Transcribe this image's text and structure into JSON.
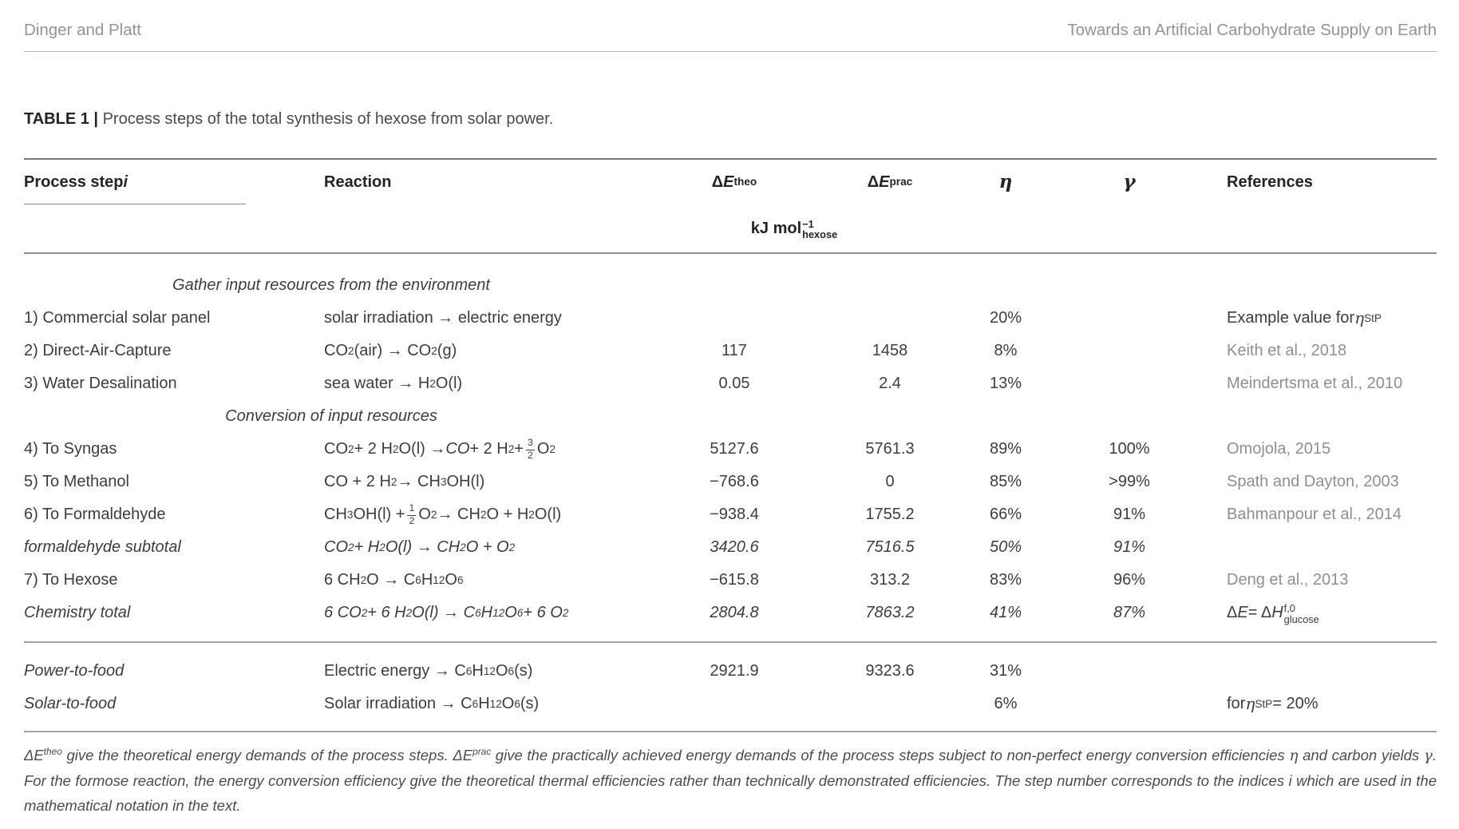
{
  "page_header": {
    "left": "Dinger and Platt",
    "right": "Towards an Artificial Carbohydrate Supply on Earth"
  },
  "caption": {
    "label": "TABLE 1 |",
    "text": "Process steps of the total synthesis of hexose from solar power."
  },
  "colors": {
    "body_text": "#3d3d3d",
    "header_text": "#242424",
    "citation_gray": "#8f8f8f",
    "rule_gray": "#9a9a9a",
    "background": "#ffffff"
  },
  "table": {
    "columns": {
      "step": [
        {
          "t": "Process step "
        },
        {
          "t": "i",
          "s": "it"
        }
      ],
      "reaction": [
        {
          "t": "Reaction"
        }
      ],
      "e_theo": [
        {
          "t": "Δ"
        },
        {
          "t": "E",
          "s": "it"
        },
        {
          "t": "theo",
          "s": "sup"
        }
      ],
      "e_prac": [
        {
          "t": "Δ"
        },
        {
          "t": "E",
          "s": "it"
        },
        {
          "t": "prac",
          "s": "sup"
        }
      ],
      "eta": [
        {
          "t": "η",
          "s": "itserif"
        }
      ],
      "gamma": [
        {
          "t": "γ",
          "s": "itserif"
        }
      ],
      "references": [
        {
          "t": "References"
        }
      ],
      "unit": [
        {
          "t": "kJ mol"
        },
        {
          "s": "stack",
          "sup": "−1",
          "sub": "hexose"
        }
      ]
    },
    "rows": [
      {
        "type": "section",
        "first": true,
        "label": "Gather input resources from the environment"
      },
      {
        "type": "row",
        "step": "1) Commercial solar panel",
        "reaction": [
          {
            "t": "solar irradiation → electric energy"
          }
        ],
        "e_theo": "",
        "e_prac": "",
        "eta": "20%",
        "gamma": "",
        "ref": [
          {
            "t": "Example value for "
          },
          {
            "t": "η",
            "s": "itserif"
          },
          {
            "t": "StP",
            "s": "sub"
          }
        ],
        "ref_cite": false
      },
      {
        "type": "row",
        "step": "2) Direct-Air-Capture",
        "reaction": [
          {
            "t": "CO"
          },
          {
            "t": "2",
            "s": "sub"
          },
          {
            "t": "(air) → CO"
          },
          {
            "t": "2",
            "s": "sub"
          },
          {
            "t": "(g)"
          }
        ],
        "e_theo": "117",
        "e_prac": "1458",
        "eta": "8%",
        "gamma": "",
        "ref": [
          {
            "t": "Keith et al., 2018"
          }
        ],
        "ref_cite": true
      },
      {
        "type": "row",
        "step": "3) Water Desalination",
        "reaction": [
          {
            "t": "sea water → H"
          },
          {
            "t": "2",
            "s": "sub"
          },
          {
            "t": "O(l)"
          }
        ],
        "e_theo": "0.05",
        "e_prac": "2.4",
        "eta": "13%",
        "gamma": "",
        "ref": [
          {
            "t": "Meindertsma et al., 2010"
          }
        ],
        "ref_cite": true
      },
      {
        "type": "section",
        "label": "Conversion of input resources"
      },
      {
        "type": "row",
        "step": "4) To Syngas",
        "reaction": [
          {
            "t": "CO"
          },
          {
            "t": "2",
            "s": "sub"
          },
          {
            "t": " + 2 H"
          },
          {
            "t": "2",
            "s": "sub"
          },
          {
            "t": "O(l) → "
          },
          {
            "t": "CO",
            "s": "it"
          },
          {
            "t": " + 2 H"
          },
          {
            "t": "2",
            "s": "sub"
          },
          {
            "t": " + "
          },
          {
            "s": "frac",
            "sup": "3",
            "sub": "2"
          },
          {
            "t": " O"
          },
          {
            "t": "2",
            "s": "sub"
          }
        ],
        "e_theo": "5127.6",
        "e_prac": "5761.3",
        "eta": "89%",
        "gamma": "100%",
        "ref": [
          {
            "t": "Omojola, 2015"
          }
        ],
        "ref_cite": true
      },
      {
        "type": "row",
        "step": "5) To Methanol",
        "reaction": [
          {
            "t": "CO + 2 H"
          },
          {
            "t": "2",
            "s": "sub"
          },
          {
            "t": " → CH"
          },
          {
            "t": "3",
            "s": "sub"
          },
          {
            "t": "OH(l)"
          }
        ],
        "e_theo": "−768.6",
        "e_prac": "0",
        "eta": "85%",
        "gamma": ">99%",
        "ref": [
          {
            "t": "Spath and Dayton, 2003"
          }
        ],
        "ref_cite": true
      },
      {
        "type": "row",
        "step": "6) To Formaldehyde",
        "reaction": [
          {
            "t": "CH"
          },
          {
            "t": "3",
            "s": "sub"
          },
          {
            "t": "OH(l) + "
          },
          {
            "s": "frac",
            "sup": "1",
            "sub": "2"
          },
          {
            "t": " O"
          },
          {
            "t": "2",
            "s": "sub"
          },
          {
            "t": " → CH"
          },
          {
            "t": "2",
            "s": "sub"
          },
          {
            "t": "O + H"
          },
          {
            "t": "2",
            "s": "sub"
          },
          {
            "t": "O(l)"
          }
        ],
        "e_theo": "−938.4",
        "e_prac": "1755.2",
        "eta": "66%",
        "gamma": "91%",
        "ref": [
          {
            "t": "Bahmanpour et al., 2014"
          }
        ],
        "ref_cite": true
      },
      {
        "type": "row",
        "mods": "it-all",
        "step": "formaldehyde subtotal",
        "reaction": [
          {
            "t": "CO"
          },
          {
            "t": "2",
            "s": "sub"
          },
          {
            "t": " + H"
          },
          {
            "t": "2",
            "s": "sub"
          },
          {
            "t": "O(l) → CH"
          },
          {
            "t": "2",
            "s": "sub"
          },
          {
            "t": "O + O"
          },
          {
            "t": "2",
            "s": "sub"
          }
        ],
        "e_theo": "3420.6",
        "e_prac": "7516.5",
        "eta": "50%",
        "gamma": "91%",
        "ref": []
      },
      {
        "type": "row",
        "step": "7) To Hexose",
        "reaction": [
          {
            "t": "6 CH"
          },
          {
            "t": "2",
            "s": "sub"
          },
          {
            "t": "O → C"
          },
          {
            "t": "6",
            "s": "sub"
          },
          {
            "t": "H"
          },
          {
            "t": "12",
            "s": "sub"
          },
          {
            "t": "O"
          },
          {
            "t": "6",
            "s": "sub"
          }
        ],
        "e_theo": "−615.8",
        "e_prac": "313.2",
        "eta": "83%",
        "gamma": "96%",
        "ref": [
          {
            "t": "Deng et al., 2013"
          }
        ],
        "ref_cite": true
      },
      {
        "type": "row",
        "mods": "it-all",
        "cls": "padb15",
        "step": "Chemistry total",
        "reaction": [
          {
            "t": "6 CO"
          },
          {
            "t": "2",
            "s": "sub"
          },
          {
            "t": " + 6 H"
          },
          {
            "t": "2",
            "s": "sub"
          },
          {
            "t": "O(l) → C"
          },
          {
            "t": "6",
            "s": "sub"
          },
          {
            "t": "H"
          },
          {
            "t": "12",
            "s": "sub"
          },
          {
            "t": "O"
          },
          {
            "t": "6",
            "s": "sub"
          },
          {
            "t": " + 6 O"
          },
          {
            "t": "2",
            "s": "sub"
          }
        ],
        "e_theo": "2804.8",
        "e_prac": "7863.2",
        "eta": "41%",
        "gamma": "87%",
        "ref": [
          {
            "t": "Δ"
          },
          {
            "t": "E",
            "s": "it"
          },
          {
            "t": " = Δ"
          },
          {
            "t": "H",
            "s": "it"
          },
          {
            "s": "stack",
            "sup": "f,0",
            "sub": "glucose"
          }
        ],
        "ref_cite": false
      },
      {
        "type": "rule"
      },
      {
        "type": "row",
        "mods": "it-label",
        "cls": "padt15",
        "step": "Power-to-food",
        "reaction": [
          {
            "t": "Electric energy → C"
          },
          {
            "t": "6",
            "s": "sub"
          },
          {
            "t": "H"
          },
          {
            "t": "12",
            "s": "sub"
          },
          {
            "t": "O"
          },
          {
            "t": "6",
            "s": "sub"
          },
          {
            "t": "(s)"
          }
        ],
        "e_theo": "2921.9",
        "e_prac": "9323.6",
        "eta": "31%",
        "gamma": "",
        "ref": []
      },
      {
        "type": "row",
        "mods": "it-label",
        "cls": "padb13",
        "step": "Solar-to-food",
        "reaction": [
          {
            "t": "Solar irradiation → C"
          },
          {
            "t": "6",
            "s": "sub"
          },
          {
            "t": "H"
          },
          {
            "t": "12",
            "s": "sub"
          },
          {
            "t": "O"
          },
          {
            "t": "6",
            "s": "sub"
          },
          {
            "t": "(s)"
          }
        ],
        "e_theo": "",
        "e_prac": "",
        "eta": "6%",
        "gamma": "",
        "ref": [
          {
            "t": "for "
          },
          {
            "t": "η",
            "s": "itserif"
          },
          {
            "t": "StP",
            "s": "sub"
          },
          {
            "t": " = 20%"
          }
        ],
        "ref_cite": false
      },
      {
        "type": "rule"
      }
    ]
  },
  "footnote": [
    {
      "t": "Δ"
    },
    {
      "t": "E",
      "s": "it"
    },
    {
      "t": "theo",
      "s": "sup"
    },
    {
      "t": " give the theoretical energy demands of the process steps. Δ"
    },
    {
      "t": "E",
      "s": "it"
    },
    {
      "t": "prac",
      "s": "sup"
    },
    {
      "t": " give the practically achieved energy demands of the process steps subject to non-perfect energy conversion efficiencies "
    },
    {
      "t": "η",
      "s": "itserif"
    },
    {
      "t": " and carbon yields "
    },
    {
      "t": "γ",
      "s": "itserif"
    },
    {
      "t": ". For the formose reaction, the energy conversion efficiency give the theoretical thermal efficiencies rather than technically demonstrated efficiencies. The step number corresponds to the indices i which are used in the mathematical notation in the text."
    }
  ]
}
